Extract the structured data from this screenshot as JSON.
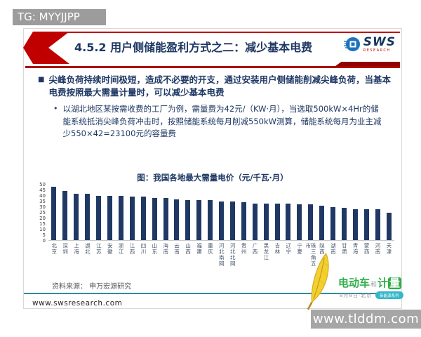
{
  "overlay": {
    "tg_label": "TG: MYYJJPP",
    "site_bar": "www.tlddm.com"
  },
  "slide": {
    "title": "4.5.2 用户侧储能盈利方式之二：减少基本电费",
    "logo": {
      "name": "SWS",
      "sub": "RESEARCH"
    },
    "bullets": {
      "b1_marker": "■",
      "b1": "尖峰负荷持续时间极短，造成不必要的开支，通过安装用户侧储能削减尖峰负荷，当基本电费按照最大需量计量时，可以减少基本电费",
      "b2_marker": "•",
      "b2": "以湖北地区某按需收费的工厂为例，需量费为42元/（KW·月），当选取500kW×4Hr的储能系统抵消尖峰负荷冲击时，按照储能系统每月削减550kW测算，储能系统每月为业主减少550×42=23100元的容量费"
    },
    "source": "资料来源： 申万宏源研究",
    "website": "www.swsresearch.com"
  },
  "watermark": {
    "brand_main": "电动车",
    "brand_mid": "和",
    "brand_tail": "计",
    "brand_boxed": "量",
    "subtitle": "8月8日·北京",
    "badge": "新能源系列"
  },
  "chart_data": {
    "type": "bar",
    "title": "图：我国各地最大需量电价（元/千瓦·月）",
    "categories": [
      "北京",
      "深圳",
      "上海",
      "湖北",
      "江苏",
      "安徽",
      "浙江",
      "江西",
      "四川",
      "山东",
      "海南",
      "云南",
      "山西",
      "福建",
      "重庆",
      "河北南网",
      "河北北网",
      "贵州",
      "广西",
      "黑龙江",
      "吉林",
      "辽宁",
      "宁夏",
      "珠三角五市",
      "陕西",
      "湖南",
      "甘肃",
      "青海",
      "蒙西",
      "河南",
      "天津"
    ],
    "values": [
      48,
      44,
      42,
      42,
      40,
      40,
      40,
      39,
      39,
      38,
      38,
      37,
      36,
      36,
      36,
      35,
      35,
      34,
      33,
      33,
      33,
      33,
      32,
      32,
      31,
      30,
      29,
      28,
      28,
      28,
      25
    ],
    "xlabel": "",
    "ylabel": "",
    "ylim": [
      0,
      50
    ],
    "ytick_step": 5,
    "grid": false,
    "legend_position": "none",
    "bar_color": "#203864"
  },
  "colors": {
    "accent_red": "#c00000",
    "dark_red_bar": "#8f0000",
    "navy_text": "#1f3864",
    "teal_line": "#2e8b9e",
    "brand_green": "#2fae49",
    "overlay_gray": "#9c9c9c"
  }
}
